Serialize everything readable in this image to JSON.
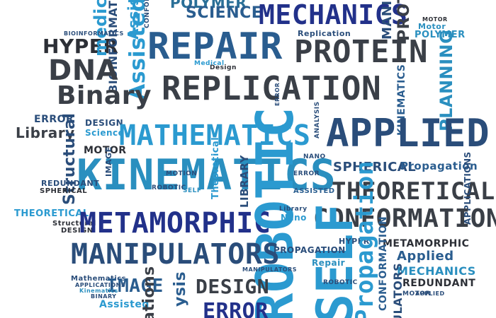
{
  "cloud": {
    "words": [
      {
        "text": "POLYMER",
        "color": "#2a6f97"
      },
      {
        "text": "SCIENCE",
        "color": "#2a5d8f"
      },
      {
        "text": "MECHANICS",
        "color": "#22318a"
      },
      {
        "text": "MANIPULATORS",
        "color": "#2a4d7a"
      },
      {
        "text": "PROTEIN",
        "color": "#3a3f47"
      },
      {
        "text": "Motor",
        "color": "#2a8fbf"
      },
      {
        "text": "POLYMER",
        "color": "#2a8fbf"
      },
      {
        "text": "HYPER",
        "color": "#2c2f36"
      },
      {
        "text": "medical",
        "color": "#2b9ad0"
      },
      {
        "text": "Assisted",
        "color": "#2b9ad0"
      },
      {
        "text": "Assiste",
        "color": "#2b9ad0"
      },
      {
        "text": "BIOINFORMATICS",
        "color": "#2a4d7a"
      },
      {
        "text": "DNA",
        "color": "#3a3f47"
      },
      {
        "text": "REPAIR",
        "color": "#2a5d8f"
      },
      {
        "text": "PROTEIN",
        "color": "#3a3f47"
      },
      {
        "text": "Binary",
        "color": "#3a3f47"
      },
      {
        "text": "REPLICATION",
        "color": "#3a3f47"
      },
      {
        "text": "PLANNING",
        "color": "#2a8fbf"
      },
      {
        "text": "KINEMATICS",
        "color": "#2a5d8f"
      },
      {
        "text": "Replication",
        "color": "#2a4d7a"
      },
      {
        "text": "ERROR",
        "color": "#2a4d7a"
      },
      {
        "text": "Library",
        "color": "#3a3f47"
      },
      {
        "text": "DESIGN",
        "color": "#2a4d7a"
      },
      {
        "text": "Science",
        "color": "#2b9ad0"
      },
      {
        "text": "MOTOR",
        "color": "#2c2f36"
      },
      {
        "text": "MATHEMATICS",
        "color": "#2b9ad0"
      },
      {
        "text": "APPLIED",
        "color": "#2a4d7a"
      },
      {
        "text": "Structural",
        "color": "#2a4d7a"
      },
      {
        "text": "KINEMATICS",
        "color": "#2a8fbf"
      },
      {
        "text": "SPHERICAL",
        "color": "#2a4d7a"
      },
      {
        "text": "Propagation",
        "color": "#2a5d8f"
      },
      {
        "text": "THEORETICAL",
        "color": "#3a3f47"
      },
      {
        "text": "APPLICATIONS",
        "color": "#2a4d7a"
      },
      {
        "text": "REDUNDANT",
        "color": "#2a4d7a"
      },
      {
        "text": "SPHERICAL",
        "color": "#2c2f36"
      },
      {
        "text": "Theoretical",
        "color": "#2b9ad0"
      },
      {
        "text": "LIBRARY",
        "color": "#2a4d7a"
      },
      {
        "text": "THEORETICAL",
        "color": "#2b9ad0"
      },
      {
        "text": "Structural",
        "color": "#2c2f36"
      },
      {
        "text": "DESIGN",
        "color": "#2c2f36"
      },
      {
        "text": "METAMORPHIC",
        "color": "#22318a"
      },
      {
        "text": "ROBOTIC",
        "color": "#2b9ad0"
      },
      {
        "text": "CONFORMATION",
        "color": "#3a3f47"
      },
      {
        "text": "Nano",
        "color": "#2b9ad0"
      },
      {
        "text": "MANIPULATORS",
        "color": "#2a4d7a"
      },
      {
        "text": "SELF",
        "color": "#2b9ad0"
      },
      {
        "text": "PROPAGATION",
        "color": "#2a4d7a"
      },
      {
        "text": "METAMORPHIC",
        "color": "#2c2f36"
      },
      {
        "text": "HYPER",
        "color": "#2a4d7a"
      },
      {
        "text": "Applied",
        "color": "#2a5d8f"
      },
      {
        "text": "Repair",
        "color": "#2a8fbf"
      },
      {
        "text": "MECHANICS",
        "color": "#2a8fbf"
      },
      {
        "text": "REDUNDANT",
        "color": "#2c2f36"
      },
      {
        "text": "Mathematics",
        "color": "#2a4d7a"
      },
      {
        "text": "IMAGE",
        "color": "#2a5d8f"
      },
      {
        "text": "Assisted",
        "color": "#2b9ad0"
      },
      {
        "text": "DESIGN",
        "color": "#3a3f47"
      },
      {
        "text": "ERROR",
        "color": "#22318a"
      },
      {
        "text": "ysis",
        "color": "#2a5d8f"
      },
      {
        "text": "ations",
        "color": "#3a3f47"
      },
      {
        "text": "Propagation",
        "color": "#2b9ad0"
      },
      {
        "text": "CONFORMATION",
        "color": "#2a5d8f"
      },
      {
        "text": "ULATORS",
        "color": "#2a4d7a"
      },
      {
        "text": "NANO",
        "color": "#2a4d7a"
      },
      {
        "text": "IMAGE",
        "color": "#2a4d7a"
      },
      {
        "text": "ROBOTIC",
        "color": "#2a4d7a"
      },
      {
        "text": "MOTION",
        "color": "#2a4d7a"
      },
      {
        "text": "SELF",
        "color": "#2a8fbf"
      },
      {
        "text": "ERROR",
        "color": "#2a4d7a"
      },
      {
        "text": "ASSISTED",
        "color": "#2a5d8f"
      },
      {
        "text": "Library",
        "color": "#2a4d7a"
      },
      {
        "text": "APPLICATIONS",
        "color": "#2a4d7a"
      },
      {
        "text": "ROBOTIC",
        "color": "#2a4d7a"
      },
      {
        "text": "MOTOR",
        "color": "#2a4d7a"
      },
      {
        "text": "APPLIED",
        "color": "#2a4d7a"
      },
      {
        "text": "Kinematics",
        "color": "#2a8fbf"
      },
      {
        "text": "BINARY",
        "color": "#2a4d7a"
      },
      {
        "text": "MOTOR",
        "color": "#2c2f36"
      },
      {
        "text": "ERROR",
        "color": "#2a4d7a"
      },
      {
        "text": "ANALYSIS",
        "color": "#2a4d7a"
      },
      {
        "text": "Design",
        "color": "#2c2f36"
      },
      {
        "text": "Medical",
        "color": "#2b9ad0"
      },
      {
        "text": "CONFORMATION",
        "color": "#2a4d7a"
      },
      {
        "text": "MANIPULATORS",
        "color": "#2a4d7a"
      },
      {
        "text": "BIOINFORMATICS",
        "color": "#2a4d7a"
      }
    ]
  }
}
